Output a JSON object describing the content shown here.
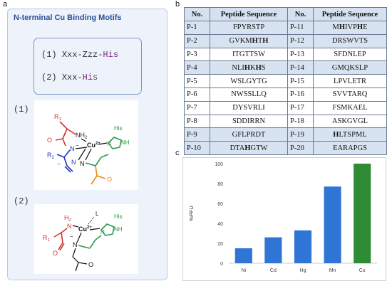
{
  "panel_a": {
    "letter": "a",
    "title": "N-terminal Cu Binding Motifs",
    "motifs": [
      {
        "num": "(1)",
        "seq": "Xxx-Zzz-",
        "his": "His"
      },
      {
        "num": "(2)",
        "seq": "Xxx-",
        "his": "His"
      }
    ],
    "struct1": {
      "num": "(1)",
      "r1": "R",
      "r1sub": "1",
      "nh2": "NH",
      "nh2sub": "2",
      "o": "O",
      "cu": "Cu",
      "cu_sup": "2+",
      "his": "His",
      "nh": "NH",
      "n_minus": "N",
      "minus": "−",
      "r2": "R",
      "r2sub": "2",
      "n": "N",
      "n2": "N",
      "o2": "O"
    },
    "struct2": {
      "num": "(2)",
      "h2": "H",
      "h2sub": "2",
      "n_top": "N",
      "l": "L",
      "r1": "R",
      "r1sub": "1",
      "cu": "Cu",
      "cu_sup": "2+",
      "his": "His",
      "nh": "NH",
      "n": "N",
      "n2": "N",
      "o": "O",
      "o2": "O",
      "minus": "−"
    }
  },
  "panel_b": {
    "letter": "b",
    "headers": [
      "No.",
      "Peptide Sequence",
      "No.",
      "Peptide Sequence"
    ],
    "rows": [
      {
        "shade": true,
        "l_no": "P-1",
        "l_seq": [
          {
            "t": "FPYRSTP",
            "b": false
          }
        ],
        "r_no": "P-11",
        "r_seq": [
          {
            "t": "M",
            "b": false
          },
          {
            "t": "H",
            "b": true
          },
          {
            "t": "IVP",
            "b": false
          },
          {
            "t": "H",
            "b": true
          },
          {
            "t": "E",
            "b": false
          }
        ]
      },
      {
        "shade": true,
        "l_no": "P-2",
        "l_seq": [
          {
            "t": "GVKM",
            "b": false
          },
          {
            "t": "H",
            "b": true
          },
          {
            "t": "T",
            "b": false
          },
          {
            "t": "H",
            "b": true
          }
        ],
        "r_no": "P-12",
        "r_seq": [
          {
            "t": "DRSWVTS",
            "b": false
          }
        ]
      },
      {
        "shade": false,
        "l_no": "P-3",
        "l_seq": [
          {
            "t": "ITGTTSW",
            "b": false
          }
        ],
        "r_no": "P-13",
        "r_seq": [
          {
            "t": "SFDNLEP",
            "b": false
          }
        ]
      },
      {
        "shade": true,
        "l_no": "P-4",
        "l_seq": [
          {
            "t": "NLI",
            "b": false
          },
          {
            "t": "H",
            "b": true
          },
          {
            "t": "K",
            "b": false
          },
          {
            "t": "H",
            "b": true
          },
          {
            "t": "S",
            "b": false
          }
        ],
        "r_no": "P-14",
        "r_seq": [
          {
            "t": "GMQKSLP",
            "b": false
          }
        ]
      },
      {
        "shade": false,
        "l_no": "P-5",
        "l_seq": [
          {
            "t": "WSLGYTG",
            "b": false
          }
        ],
        "r_no": "P-15",
        "r_seq": [
          {
            "t": "LPVLETR",
            "b": false
          }
        ]
      },
      {
        "shade": false,
        "l_no": "P-6",
        "l_seq": [
          {
            "t": "NWSSLLQ",
            "b": false
          }
        ],
        "r_no": "P-16",
        "r_seq": [
          {
            "t": "SVVTARQ",
            "b": false
          }
        ]
      },
      {
        "shade": false,
        "l_no": "P-7",
        "l_seq": [
          {
            "t": "DYSVRLI",
            "b": false
          }
        ],
        "r_no": "P-17",
        "r_seq": [
          {
            "t": "FSMKAEL",
            "b": false
          }
        ]
      },
      {
        "shade": false,
        "l_no": "P-8",
        "l_seq": [
          {
            "t": "SDDIRRN",
            "b": false
          }
        ],
        "r_no": "P-18",
        "r_seq": [
          {
            "t": "ASKGVGL",
            "b": false
          }
        ]
      },
      {
        "shade": true,
        "l_no": "P-9",
        "l_seq": [
          {
            "t": "GFLPRDT",
            "b": false
          }
        ],
        "r_no": "P-19",
        "r_seq": [
          {
            "t": "H",
            "b": true
          },
          {
            "t": "LTSPML",
            "b": false
          }
        ]
      },
      {
        "shade": true,
        "l_no": "P-10",
        "l_seq": [
          {
            "t": "DTA",
            "b": false
          },
          {
            "t": "H",
            "b": true
          },
          {
            "t": "GTW",
            "b": false
          }
        ],
        "r_no": "P-20",
        "r_seq": [
          {
            "t": "EARAPGS",
            "b": false
          }
        ]
      }
    ]
  },
  "panel_c": {
    "letter": "c"
  },
  "colors": {
    "panel_bg": "#eef3fb",
    "title_blue": "#2d4f94",
    "bar_blue": "#2f75d6",
    "bar_green": "#2e8c35",
    "his_green": "#2c9a4a",
    "r1_red": "#d0342c",
    "r2_blue": "#2233bb",
    "ring_green": "#2c9a4a",
    "orange": "#e88a1a"
  },
  "chart_data": {
    "type": "bar",
    "categories": [
      "Ni",
      "Cd",
      "Hg",
      "Mn",
      "Cu"
    ],
    "values": [
      15,
      26,
      33,
      77,
      100
    ],
    "bar_colors": [
      "#2f75d6",
      "#2f75d6",
      "#2f75d6",
      "#2f75d6",
      "#2e8c35"
    ],
    "title": "",
    "xlabel": "",
    "ylabel": "%PFU",
    "ylim": [
      0,
      100
    ],
    "yticks": [
      0,
      20,
      40,
      60,
      80,
      100
    ],
    "grid": false
  }
}
